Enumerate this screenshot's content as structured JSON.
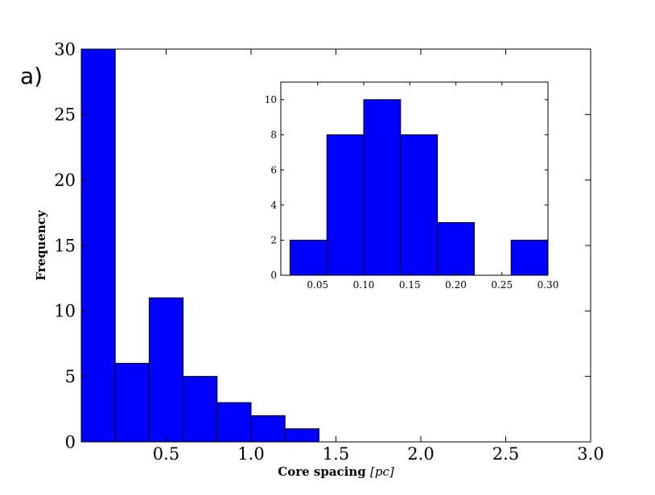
{
  "panel_label": "a)",
  "chart_data": [
    {
      "type": "bar",
      "role": "main",
      "xlabel": "Core spacing [pc]",
      "ylabel": "Frequency",
      "xlim": [
        0,
        3.0
      ],
      "ylim": [
        0,
        30
      ],
      "bin_edges": [
        0.0,
        0.2,
        0.4,
        0.6,
        0.8,
        1.0,
        1.2,
        1.4
      ],
      "values": [
        30,
        6,
        11,
        5,
        3,
        2,
        1
      ],
      "xticks": [
        "0.5",
        "1.0",
        "1.5",
        "2.0",
        "2.5",
        "3.0"
      ],
      "yticks": [
        "0",
        "5",
        "10",
        "15",
        "20",
        "25",
        "30"
      ],
      "grid": false
    },
    {
      "type": "bar",
      "role": "inset",
      "xlim": [
        0.01,
        0.3
      ],
      "ylim": [
        0,
        11
      ],
      "bin_edges": [
        0.02,
        0.06,
        0.1,
        0.14,
        0.18,
        0.22,
        0.26,
        0.3
      ],
      "values": [
        2,
        8,
        10,
        8,
        3,
        0,
        2
      ],
      "xticks": [
        "0.05",
        "0.10",
        "0.15",
        "0.20",
        "0.25",
        "0.30"
      ],
      "yticks": [
        "0",
        "2",
        "4",
        "6",
        "8",
        "10"
      ],
      "grid": false
    }
  ]
}
